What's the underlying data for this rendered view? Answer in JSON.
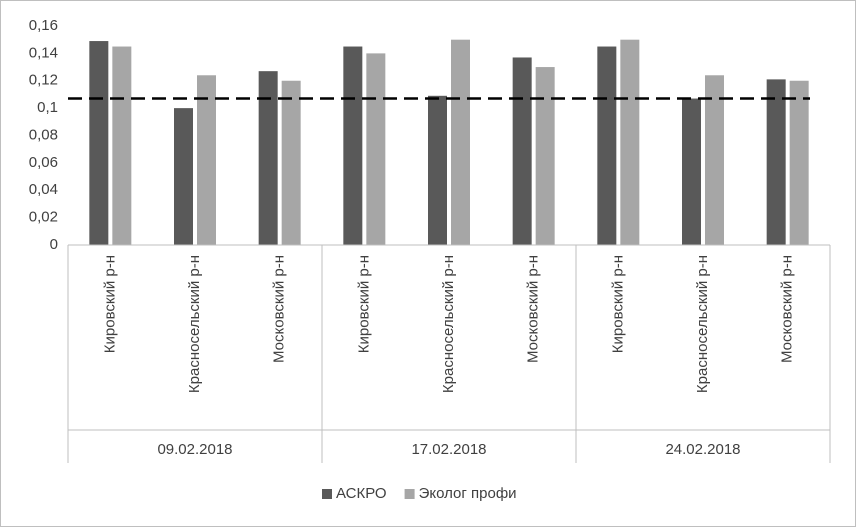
{
  "chart_data": {
    "type": "bar",
    "categories": [
      "Кировский р-н",
      "Красносельский р-н",
      "Московский р-н",
      "Кировский р-н",
      "Красносельский р-н",
      "Московский р-н",
      "Кировский р-н",
      "Красносельский р-н",
      "Московский р-н"
    ],
    "category_groups": [
      "09.02.2018",
      "17.02.2018",
      "24.02.2018"
    ],
    "series": [
      {
        "name": "АСКРО",
        "color": "#595959",
        "values": [
          0.149,
          0.1,
          0.127,
          0.145,
          0.109,
          0.137,
          0.145,
          0.107,
          0.121
        ]
      },
      {
        "name": "Эколог профи",
        "color": "#a6a6a6",
        "values": [
          0.145,
          0.124,
          0.12,
          0.14,
          0.15,
          0.13,
          0.15,
          0.124,
          0.12
        ]
      }
    ],
    "ylim": [
      0,
      0.16
    ],
    "yticks": [
      0,
      {
        "value": 0.02,
        "label": "0,02"
      },
      {
        "value": 0.04,
        "label": "0,04"
      },
      {
        "value": 0.06,
        "label": "0,06"
      },
      {
        "value": 0.08,
        "label": "0,08"
      },
      {
        "value": 0.1,
        "label": "0,1"
      },
      {
        "value": 0.12,
        "label": "0,12"
      },
      {
        "value": 0.14,
        "label": "0,14"
      },
      {
        "value": 0.16,
        "label": "0,16"
      }
    ],
    "grid": false,
    "reference_line": {
      "value": 0.107,
      "color": "#000000",
      "dashed": true
    },
    "legend": "bottom"
  }
}
